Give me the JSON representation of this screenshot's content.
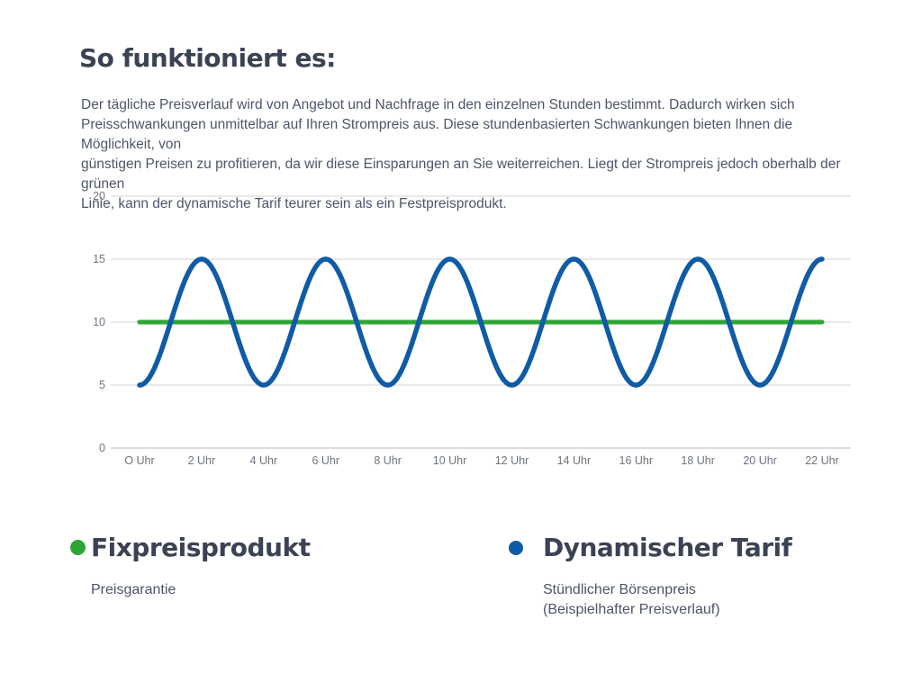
{
  "page": {
    "title": "So funktioniert es:",
    "intro_lines": [
      "Der tägliche Preisverlauf wird von Angebot und Nachfrage in den einzelnen Stunden bestimmt. Dadurch wirken sich",
      "Preisschwankungen unmittelbar auf Ihren Strompreis aus. Diese stundenbasierten Schwankungen bieten Ihnen die Möglichkeit, von",
      "günstigen Preisen zu profitieren, da wir diese Einsparungen an Sie weiterreichen. Liegt der Strompreis jedoch oberhalb der grünen",
      "Linie, kann der dynamische Tarif teurer sein als ein Festpreisprodukt."
    ]
  },
  "colors": {
    "title": "#3b4254",
    "body_text": "#4d5669",
    "green": "#2fa536",
    "blue": "#0f5ba6",
    "grid": "#dcdcdc",
    "baseline": "#c6c6c6",
    "tick_text": "#6e737e"
  },
  "chart_data": {
    "type": "line",
    "title": "",
    "xlabel": "",
    "ylabel": "",
    "grid": true,
    "legend_position": "below-chart",
    "ylim": [
      0,
      20
    ],
    "y_ticks": [
      0,
      5,
      10,
      15,
      20
    ],
    "x_tick_labels": [
      "O Uhr",
      "2 Uhr",
      "4 Uhr",
      "6 Uhr",
      "8 Uhr",
      "10 Uhr",
      "12 Uhr",
      "14 Uhr",
      "16 Uhr",
      "18 Uhr",
      "20 Uhr",
      "22 Uhr"
    ],
    "x_tick_hours": [
      0,
      2,
      4,
      6,
      8,
      10,
      12,
      14,
      16,
      18,
      20,
      22
    ],
    "x_range_hours": [
      0,
      22
    ],
    "hours": [
      0,
      1,
      2,
      3,
      4,
      5,
      6,
      7,
      8,
      9,
      10,
      11,
      12,
      13,
      14,
      15,
      16,
      17,
      18,
      19,
      20,
      21,
      22
    ],
    "series": [
      {
        "name": "Fixpreisprodukt",
        "color": "#2fa536",
        "shape": "constant",
        "constant_value": 10,
        "values": [
          10,
          10,
          10,
          10,
          10,
          10,
          10,
          10,
          10,
          10,
          10,
          10,
          10,
          10,
          10,
          10,
          10,
          10,
          10,
          10,
          10,
          10,
          10
        ]
      },
      {
        "name": "Dynamischer Tarif",
        "color": "#0f5ba6",
        "shape": "sine",
        "min": 5,
        "max": 15,
        "mean": 10,
        "amplitude": 5,
        "period_hours": 4,
        "trough_at_hour": 0,
        "values": [
          5,
          10,
          15,
          10,
          5,
          10,
          15,
          10,
          5,
          10,
          15,
          10,
          5,
          10,
          15,
          10,
          5,
          10,
          15,
          10,
          5,
          10,
          15
        ]
      }
    ]
  },
  "legend": {
    "items": [
      {
        "label": "Fixpreisprodukt",
        "sublabel": "Preisgarantie",
        "sublabel2": "",
        "color": "#2fa536"
      },
      {
        "label": "Dynamischer Tarif",
        "sublabel": "Stündlicher Börsenpreis",
        "sublabel2": "(Beispielhafter Preisverlauf)",
        "color": "#0f5ba6"
      }
    ]
  }
}
